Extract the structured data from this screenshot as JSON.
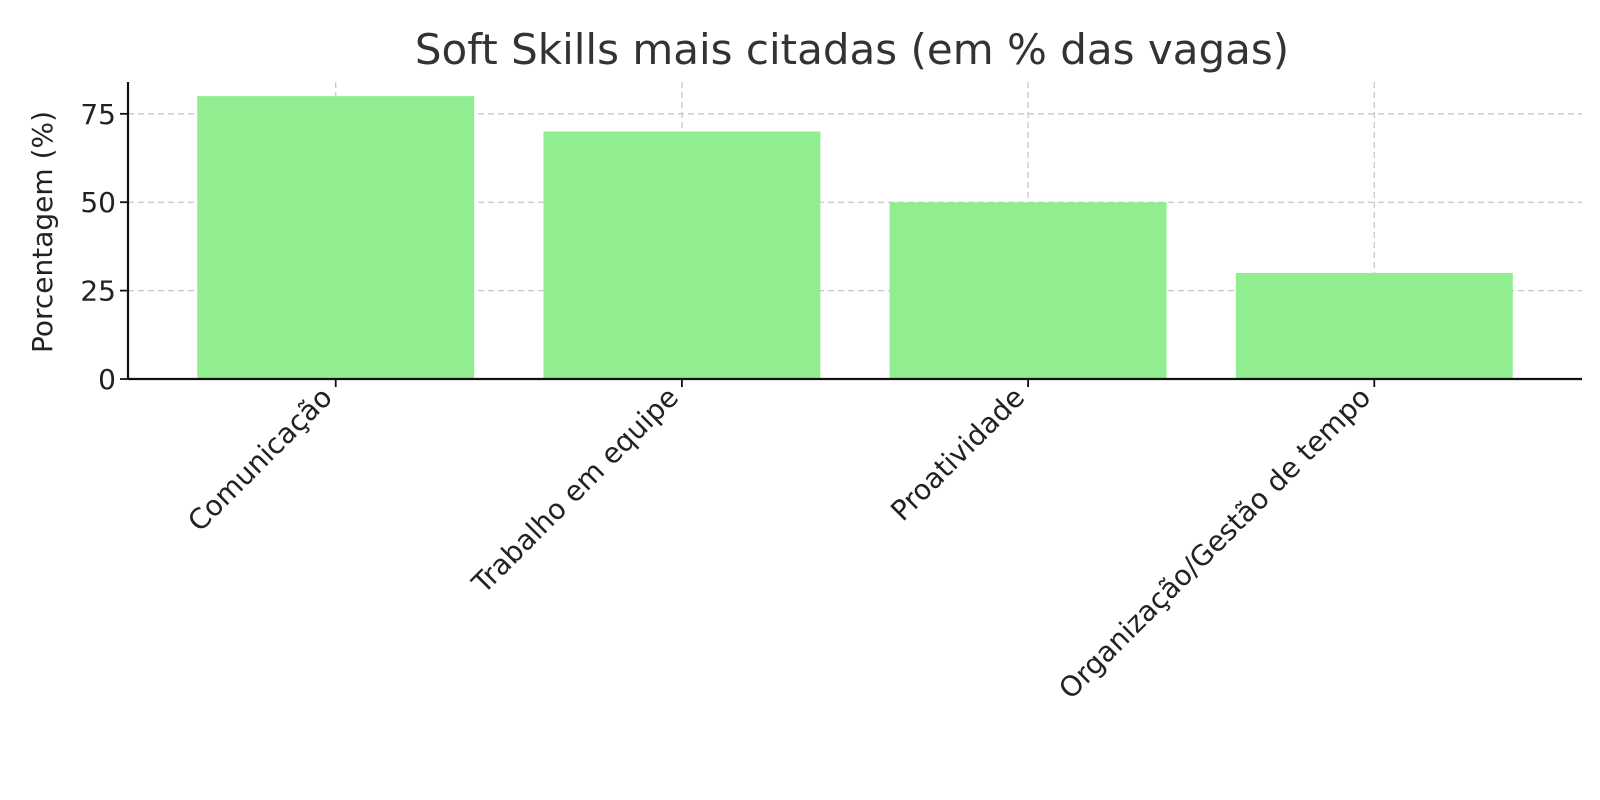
{
  "chart_data": {
    "type": "bar",
    "title": "Soft Skills mais citadas (em % das vagas)",
    "xlabel": "",
    "ylabel": "Porcentagem (%)",
    "categories": [
      "Comunicação",
      "Trabalho em equipe",
      "Proatividade",
      "Organização/Gestão de tempo"
    ],
    "values": [
      80,
      70,
      50,
      30
    ],
    "ylim": [
      0,
      84
    ],
    "yticks": [
      0,
      25,
      50,
      75
    ],
    "grid": true,
    "legend": "none",
    "colors": {
      "bar": "#90ee90",
      "grid": "#c8c8c8",
      "axis": "#111111",
      "title": "#333333"
    }
  }
}
